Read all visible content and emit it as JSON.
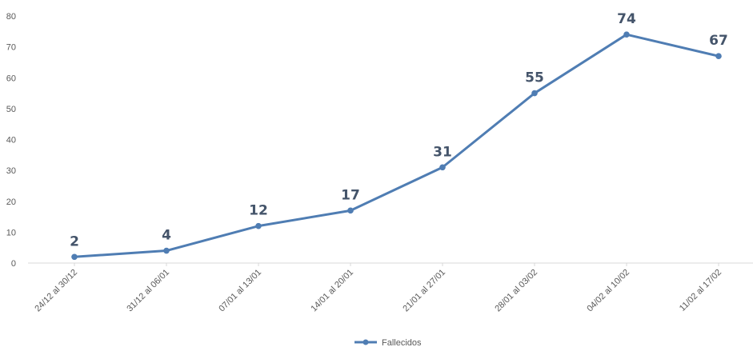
{
  "chart_data": {
    "type": "line",
    "categories": [
      "24/12 al 30/12",
      "31/12 al 06/01",
      "07/01 al 13/01",
      "14/01 al 20/01",
      "21/01 al 27/01",
      "28/01 al 03/02",
      "04/02 al 10/02",
      "11/02 al 17/02"
    ],
    "series": [
      {
        "name": "Fallecidos",
        "values": [
          2,
          4,
          12,
          17,
          31,
          55,
          74,
          67
        ],
        "color": "#4F7DB3"
      }
    ],
    "ylim": [
      0,
      80
    ],
    "yticks": [
      0,
      10,
      20,
      30,
      40,
      50,
      60,
      70,
      80
    ],
    "grid": false,
    "legend": "bottom",
    "data_labels": true,
    "data_label_color": "#44546A",
    "axis_color": "#D9D9D9"
  }
}
